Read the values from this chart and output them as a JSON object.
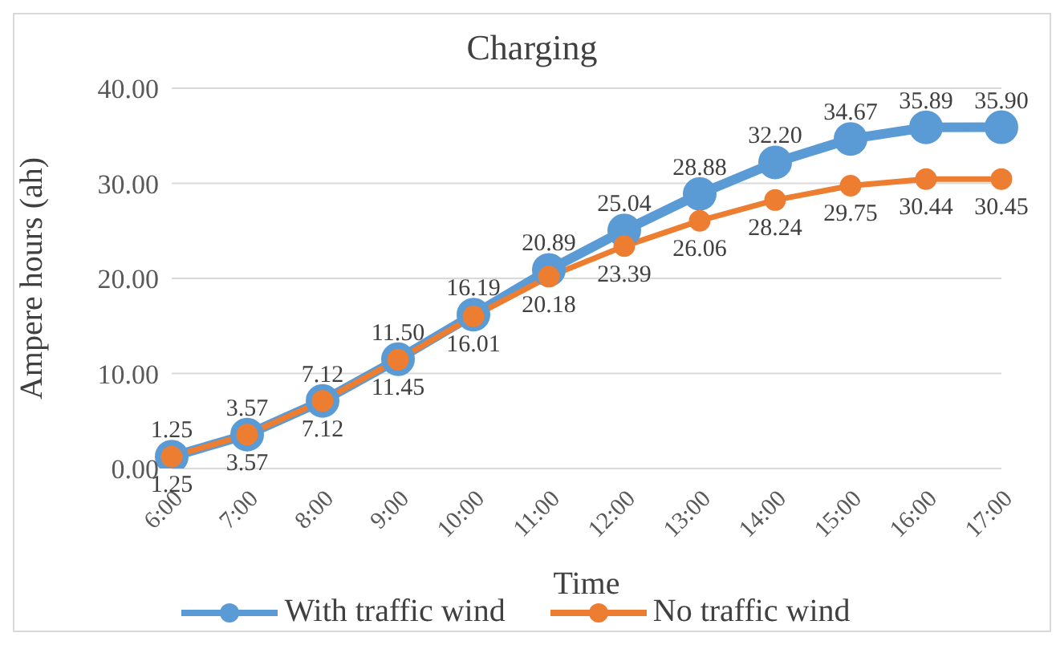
{
  "chart_data": {
    "type": "line",
    "title": "Charging",
    "xlabel": "Time",
    "ylabel": "Ampere hours (ah)",
    "categories": [
      "6:00",
      "7:00",
      "8:00",
      "9:00",
      "10:00",
      "11:00",
      "12:00",
      "13:00",
      "14:00",
      "15:00",
      "16:00",
      "17:00"
    ],
    "series": [
      {
        "name": "With traffic wind",
        "color": "#5b9bd5",
        "values": [
          1.25,
          3.57,
          7.12,
          11.5,
          16.19,
          20.89,
          25.04,
          28.88,
          32.2,
          34.67,
          35.89,
          35.9
        ],
        "value_labels": [
          "1.25",
          "3.57",
          "7.12",
          "11.50",
          "16.19",
          "20.89",
          "25.04",
          "28.88",
          "32.20",
          "34.67",
          "35.89",
          "35.90"
        ]
      },
      {
        "name": "No traffic wind",
        "color": "#ed7d31",
        "values": [
          1.25,
          3.57,
          7.12,
          11.45,
          16.01,
          20.18,
          23.39,
          26.06,
          28.24,
          29.75,
          30.44,
          30.45
        ],
        "value_labels": [
          "1.25",
          "3.57",
          "7.12",
          "11.45",
          "16.01",
          "20.18",
          "23.39",
          "26.06",
          "28.24",
          "29.75",
          "30.44",
          "30.45"
        ]
      }
    ],
    "ylim": [
      0,
      40
    ],
    "yticks": [
      {
        "value": 0,
        "label": "0.00"
      },
      {
        "value": 10,
        "label": "10.00"
      },
      {
        "value": 20,
        "label": "20.00"
      },
      {
        "value": 30,
        "label": "30.00"
      },
      {
        "value": 40,
        "label": "40.00"
      }
    ],
    "grid": "y",
    "legend": "bottom",
    "marker": "circle",
    "line_style": "solid"
  }
}
